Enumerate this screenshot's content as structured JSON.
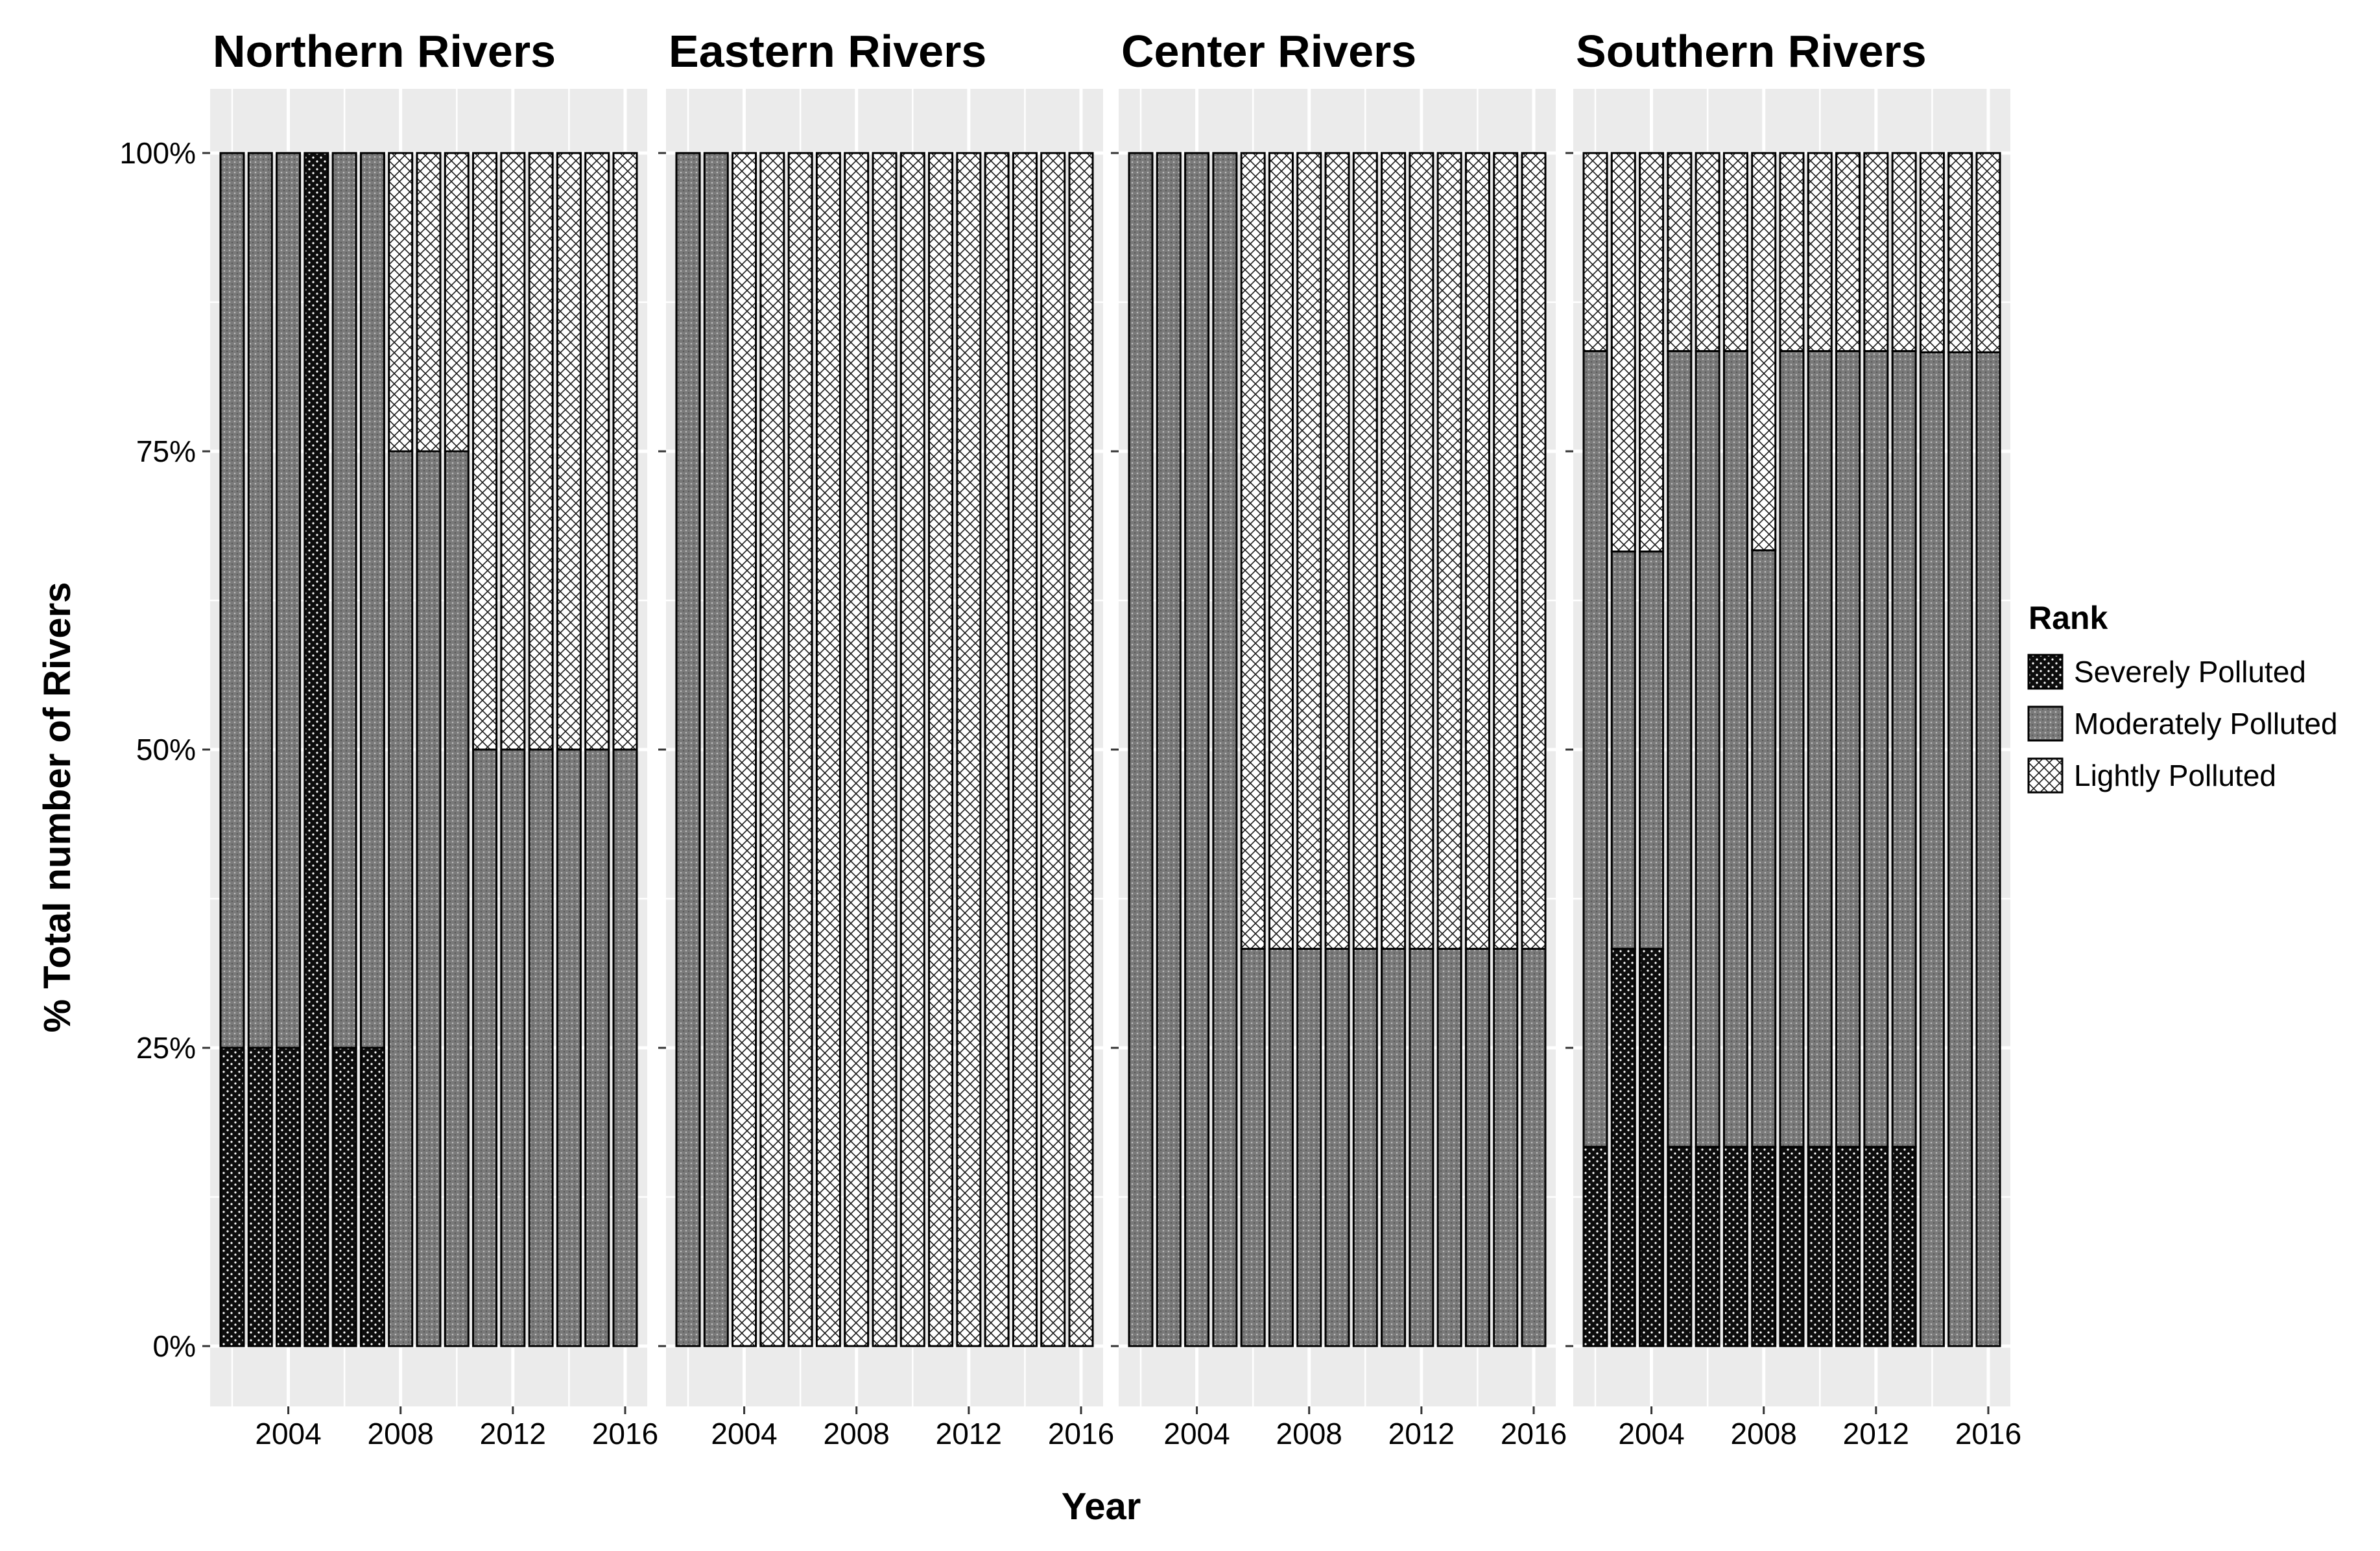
{
  "chart_data": {
    "type": "bar",
    "stacked": true,
    "percent_stacked": true,
    "x": [
      2002,
      2003,
      2004,
      2005,
      2006,
      2007,
      2008,
      2009,
      2010,
      2011,
      2012,
      2013,
      2014,
      2015,
      2016
    ],
    "x_ticks": [
      2004,
      2008,
      2012,
      2016
    ],
    "y_ticks": [
      "0%",
      "25%",
      "50%",
      "75%",
      "100%"
    ],
    "ylim": [
      0,
      100
    ],
    "xlabel": "Year",
    "ylabel": "% Total number of Rivers",
    "grid": true,
    "legend": {
      "title": "Rank",
      "placement": "right",
      "entries": [
        "Severely Polluted",
        "Moderately Polluted",
        "Lightly Polluted"
      ]
    },
    "series_colors": {
      "Severely Polluted": "#0d0d0d",
      "Moderately Polluted": "#7a7a7a",
      "Lightly Polluted": "#ffffff"
    },
    "panel_background": "#ebebeb",
    "facets": [
      {
        "title": "Northern Rivers",
        "series": [
          {
            "name": "Severely Polluted",
            "values": [
              25,
              25,
              25,
              100,
              25,
              25,
              0,
              0,
              0,
              0,
              0,
              0,
              0,
              0,
              0
            ]
          },
          {
            "name": "Moderately Polluted",
            "values": [
              75,
              75,
              75,
              0,
              75,
              75,
              75,
              75,
              75,
              50,
              50,
              50,
              50,
              50,
              50
            ]
          },
          {
            "name": "Lightly Polluted",
            "values": [
              0,
              0,
              0,
              0,
              0,
              0,
              25,
              25,
              25,
              50,
              50,
              50,
              50,
              50,
              50
            ]
          }
        ]
      },
      {
        "title": "Eastern Rivers",
        "series": [
          {
            "name": "Severely Polluted",
            "values": [
              0,
              0,
              0,
              0,
              0,
              0,
              0,
              0,
              0,
              0,
              0,
              0,
              0,
              0,
              0
            ]
          },
          {
            "name": "Moderately Polluted",
            "values": [
              100,
              100,
              0,
              0,
              0,
              0,
              0,
              0,
              0,
              0,
              0,
              0,
              0,
              0,
              0
            ]
          },
          {
            "name": "Lightly Polluted",
            "values": [
              0,
              0,
              100,
              100,
              100,
              100,
              100,
              100,
              100,
              100,
              100,
              100,
              100,
              100,
              100
            ]
          }
        ]
      },
      {
        "title": "Center Rivers",
        "series": [
          {
            "name": "Severely Polluted",
            "values": [
              0,
              0,
              0,
              0,
              0,
              0,
              0,
              0,
              0,
              0,
              0,
              0,
              0,
              0,
              0
            ]
          },
          {
            "name": "Moderately Polluted",
            "values": [
              100,
              100,
              100,
              100,
              33.3,
              33.3,
              33.3,
              33.3,
              33.3,
              33.3,
              33.3,
              33.3,
              33.3,
              33.3,
              33.3
            ]
          },
          {
            "name": "Lightly Polluted",
            "values": [
              0,
              0,
              0,
              0,
              66.7,
              66.7,
              66.7,
              66.7,
              66.7,
              66.7,
              66.7,
              66.7,
              66.7,
              66.7,
              66.7
            ]
          }
        ]
      },
      {
        "title": "Southern Rivers",
        "series": [
          {
            "name": "Severely Polluted",
            "values": [
              16.7,
              33.3,
              33.3,
              16.7,
              16.7,
              16.7,
              16.7,
              16.7,
              16.7,
              16.7,
              16.7,
              16.7,
              0,
              0,
              0
            ]
          },
          {
            "name": "Moderately Polluted",
            "values": [
              66.7,
              33.3,
              33.3,
              66.7,
              66.7,
              66.7,
              50,
              66.7,
              66.7,
              66.7,
              66.7,
              66.7,
              83.3,
              83.3,
              83.3
            ]
          },
          {
            "name": "Lightly Polluted",
            "values": [
              16.6,
              33.4,
              33.4,
              16.6,
              16.6,
              16.6,
              33.3,
              16.6,
              16.6,
              16.6,
              16.6,
              16.6,
              16.7,
              16.7,
              16.7
            ]
          }
        ]
      }
    ]
  }
}
